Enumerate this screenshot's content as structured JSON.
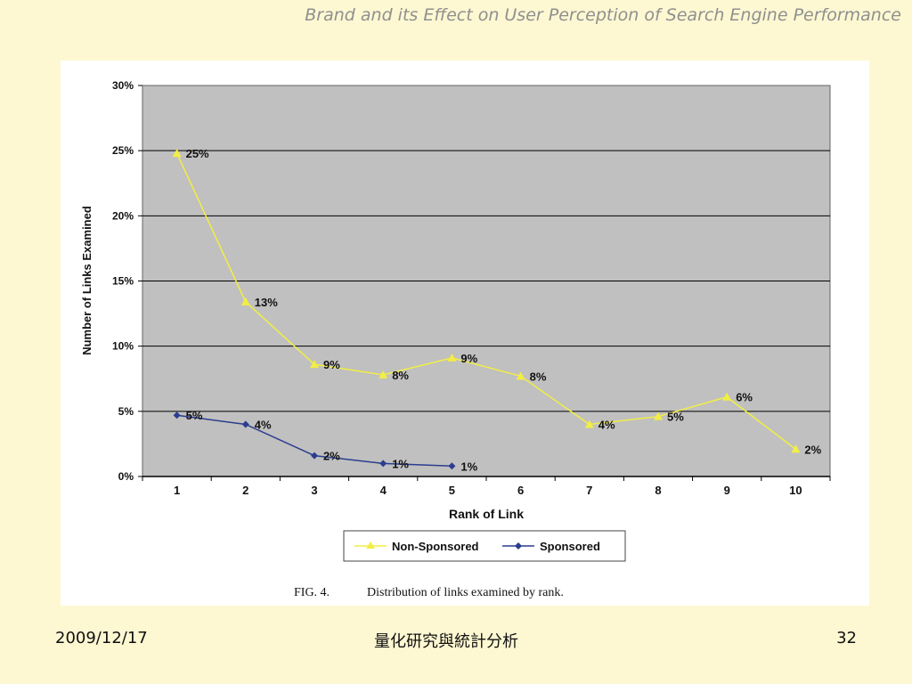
{
  "slide": {
    "header_title": "Brand and its Effect on User Perception of Search Engine Performance",
    "date": "2009/12/17",
    "center_text": "量化研究與統計分析",
    "page_number": "32"
  },
  "figure": {
    "caption_label": "FIG. 4.",
    "caption_text": "Distribution of links examined by rank."
  },
  "chart_data": {
    "type": "line",
    "title": "",
    "xlabel": "Rank of Link",
    "ylabel": "Number of Links Examined",
    "x": [
      1,
      2,
      3,
      4,
      5,
      6,
      7,
      8,
      9,
      10
    ],
    "ylim": [
      0,
      0.3
    ],
    "yticks": [
      "0%",
      "5%",
      "10%",
      "15%",
      "20%",
      "25%",
      "30%"
    ],
    "grid": true,
    "legend_position": "bottom",
    "plot_background": "#c0c0c0",
    "series": [
      {
        "name": "Non-Sponsored",
        "color": "#f2ee44",
        "marker": "triangle",
        "x": [
          1,
          2,
          3,
          4,
          5,
          6,
          7,
          8,
          9,
          10
        ],
        "values": [
          0.248,
          0.134,
          0.086,
          0.078,
          0.091,
          0.077,
          0.04,
          0.046,
          0.061,
          0.021
        ],
        "labels": [
          "25%",
          "13%",
          "9%",
          "8%",
          "9%",
          "8%",
          "4%",
          "5%",
          "6%",
          "2%"
        ]
      },
      {
        "name": "Sponsored",
        "color": "#2b3d8f",
        "marker": "diamond",
        "x": [
          1,
          2,
          3,
          4,
          5
        ],
        "values": [
          0.047,
          0.04,
          0.016,
          0.01,
          0.008
        ],
        "labels": [
          "5%",
          "4%",
          "2%",
          "1%",
          "1%"
        ]
      }
    ]
  }
}
